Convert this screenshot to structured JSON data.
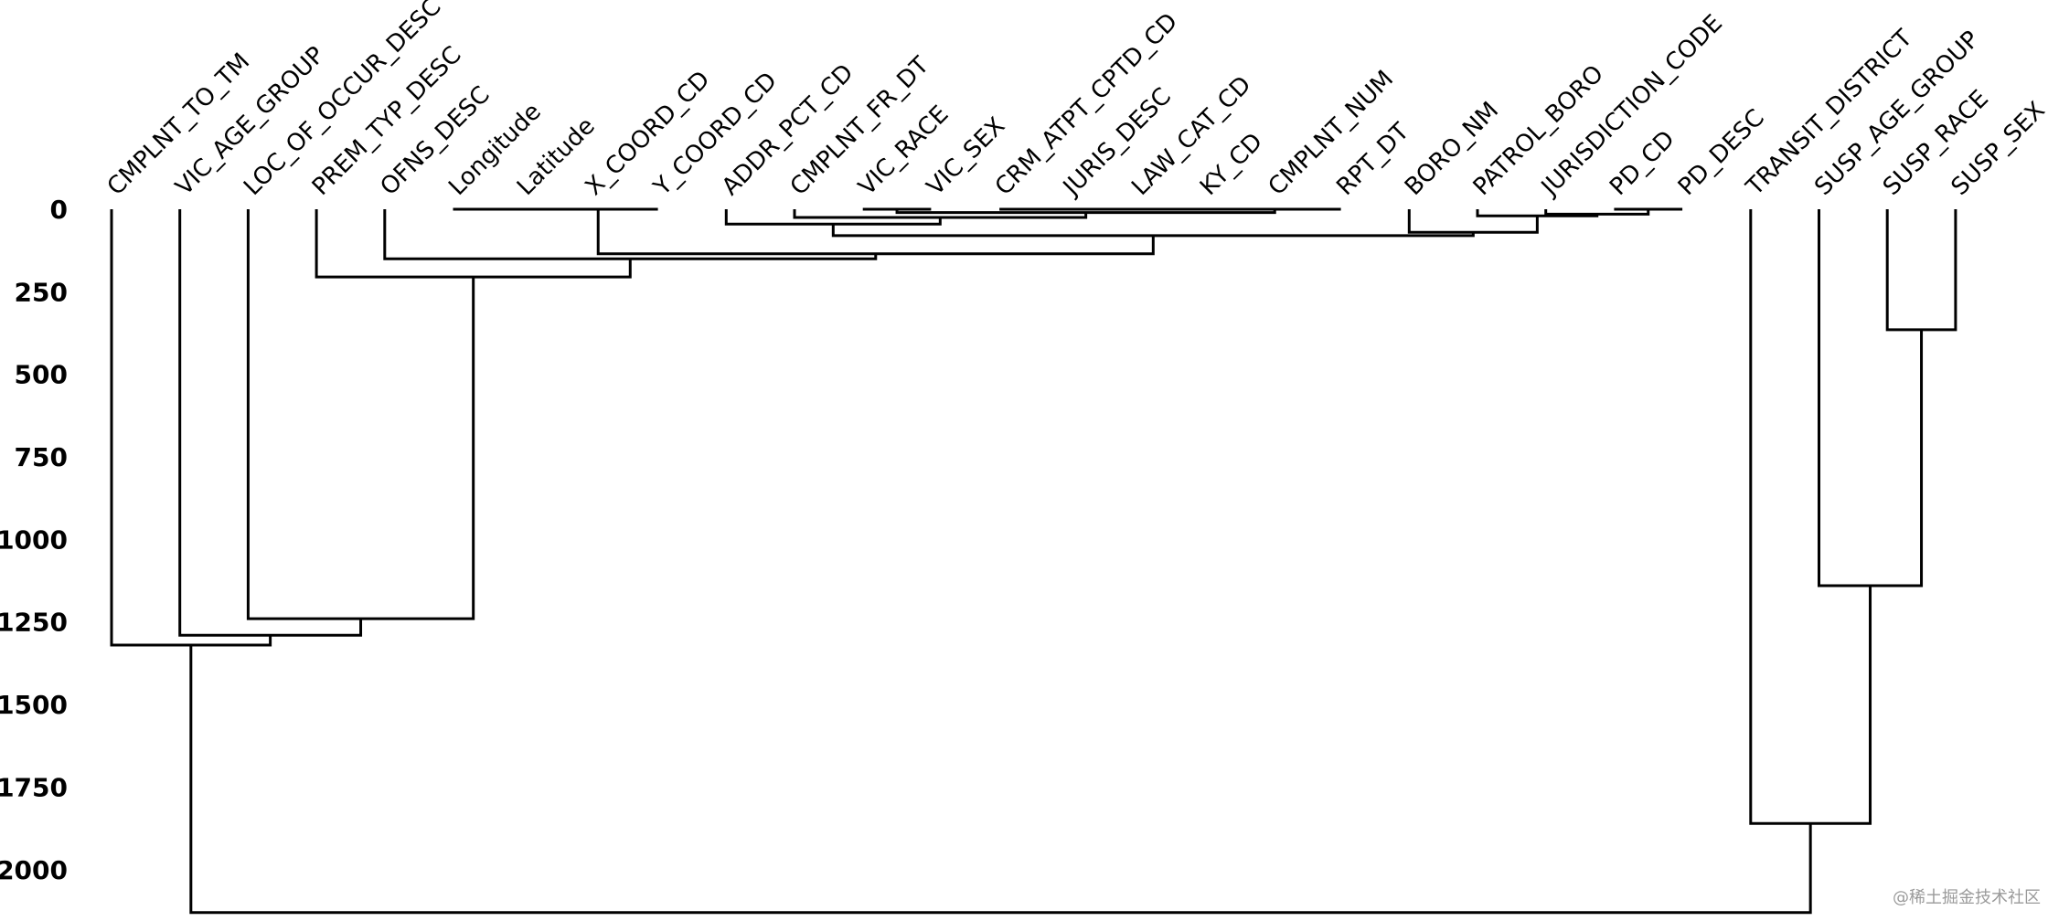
{
  "chart_data": {
    "type": "dendrogram",
    "title": "",
    "xlabel": "",
    "ylabel": "",
    "ylim": [
      0,
      2150
    ],
    "yticks": [
      0,
      250,
      500,
      750,
      1000,
      1250,
      1500,
      1750,
      2000
    ],
    "leaves": [
      "CMPLNT_TO_TM",
      "VIC_AGE_GROUP",
      "LOC_OF_OCCUR_DESC",
      "PREM_TYP_DESC",
      "OFNS_DESC",
      "Longitude",
      "Latitude",
      "X_COORD_CD",
      "Y_COORD_CD",
      "ADDR_PCT_CD",
      "CMPLNT_FR_DT",
      "VIC_RACE",
      "VIC_SEX",
      "CRM_ATPT_CPTD_CD",
      "JURIS_DESC",
      "LAW_CAT_CD",
      "KY_CD",
      "CMPLNT_NUM",
      "RPT_DT",
      "BORO_NM",
      "PATROL_BORO",
      "JURISDICTION_CODE",
      "PD_CD",
      "PD_DESC",
      "TRANSIT_DISTRICT",
      "SUSP_AGE_GROUP",
      "SUSP_RACE",
      "SUSP_SEX"
    ],
    "merges": [
      {
        "left": "L5",
        "right": "L6",
        "height": 0
      },
      {
        "left": "N0",
        "right": "L7",
        "height": 0
      },
      {
        "left": "N1",
        "right": "L8",
        "height": 0
      },
      {
        "left": "L11",
        "right": "L12",
        "height": 0
      },
      {
        "left": "L13",
        "right": "L14",
        "height": 0
      },
      {
        "left": "N4",
        "right": "L15",
        "height": 0
      },
      {
        "left": "N5",
        "right": "L16",
        "height": 0
      },
      {
        "left": "N6",
        "right": "L17",
        "height": 0
      },
      {
        "left": "N7",
        "right": "L18",
        "height": 0
      },
      {
        "left": "N3",
        "right": "N8",
        "height": 10
      },
      {
        "left": "L22",
        "right": "L23",
        "height": 0
      },
      {
        "left": "L21",
        "right": "N10",
        "height": 15
      },
      {
        "left": "L10",
        "right": "N9",
        "height": 25
      },
      {
        "left": "L20",
        "right": "N11",
        "height": 20
      },
      {
        "left": "L9",
        "right": "N12",
        "height": 45
      },
      {
        "left": "L19",
        "right": "N13",
        "height": 70
      },
      {
        "left": "N14",
        "right": "N15",
        "height": 80
      },
      {
        "left": "N2",
        "right": "N16",
        "height": 135
      },
      {
        "left": "L4",
        "right": "N17",
        "height": 150
      },
      {
        "left": "L3",
        "right": "N18",
        "height": 205
      },
      {
        "left": "L26",
        "right": "L27",
        "height": 365
      },
      {
        "left": "L2",
        "right": "N19",
        "height": 1240
      },
      {
        "left": "L25",
        "right": "N20",
        "height": 1140
      },
      {
        "left": "L1",
        "right": "N21",
        "height": 1290
      },
      {
        "left": "L0",
        "right": "N23",
        "height": 1320
      },
      {
        "left": "L24",
        "right": "N22",
        "height": 1860
      },
      {
        "left": "N24",
        "right": "N25",
        "height": 2130
      }
    ]
  },
  "watermark": "@稀土掘金技术社区"
}
